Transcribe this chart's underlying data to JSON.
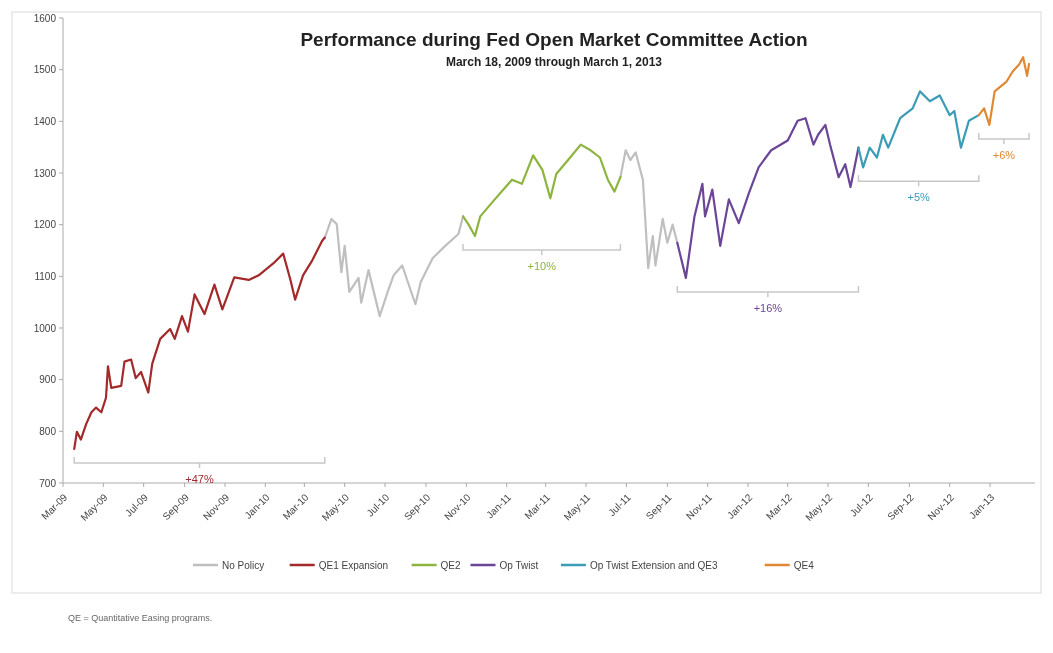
{
  "chart_data": {
    "type": "line",
    "title": "Performance during Fed Open Market Committee Action",
    "subtitle": "March 18, 2009 through March 1, 2013",
    "xlim": [
      "2009-03-01",
      "2013-03-10"
    ],
    "xticks": [
      {
        "value": "2009-03",
        "label": "Mar-09"
      },
      {
        "value": "2009-05",
        "label": "May-09"
      },
      {
        "value": "2009-07",
        "label": "Jul-09"
      },
      {
        "value": "2009-09",
        "label": "Sep-09"
      },
      {
        "value": "2009-11",
        "label": "Nov-09"
      },
      {
        "value": "2010-01",
        "label": "Jan-10"
      },
      {
        "value": "2010-03",
        "label": "Mar-10"
      },
      {
        "value": "2010-05",
        "label": "May-10"
      },
      {
        "value": "2010-07",
        "label": "Jul-10"
      },
      {
        "value": "2010-09",
        "label": "Sep-10"
      },
      {
        "value": "2010-11",
        "label": "Nov-10"
      },
      {
        "value": "2011-01",
        "label": "Jan-11"
      },
      {
        "value": "2011-03",
        "label": "Mar-11"
      },
      {
        "value": "2011-05",
        "label": "May-11"
      },
      {
        "value": "2011-07",
        "label": "Jul-11"
      },
      {
        "value": "2011-09",
        "label": "Sep-11"
      },
      {
        "value": "2011-11",
        "label": "Nov-11"
      },
      {
        "value": "2012-01",
        "label": "Jan-12"
      },
      {
        "value": "2012-03",
        "label": "Mar-12"
      },
      {
        "value": "2012-05",
        "label": "May-12"
      },
      {
        "value": "2012-07",
        "label": "Jul-12"
      },
      {
        "value": "2012-09",
        "label": "Sep-12"
      },
      {
        "value": "2012-11",
        "label": "Nov-12"
      },
      {
        "value": "2013-01",
        "label": "Jan-13"
      }
    ],
    "ylim": [
      700,
      1600
    ],
    "yticks": [
      700,
      800,
      900,
      1000,
      1100,
      1200,
      1300,
      1400,
      1500,
      1600
    ],
    "legend": "bottom",
    "marker": "none",
    "line_style": "solid",
    "series": [
      {
        "name": "No Policy",
        "color": "#bfbfbf",
        "x": [
          "2010-04-01",
          "2010-04-11",
          "2010-04-19",
          "2010-04-26",
          "2010-05-01",
          "2010-05-08",
          "2010-05-22",
          "2010-05-26",
          "2010-06-06",
          "2010-06-23",
          "2010-07-05",
          "2010-07-14",
          "2010-07-27",
          "2010-08-16",
          "2010-08-24",
          "2010-09-11",
          "2010-09-26",
          "2010-10-20",
          "2010-10-27",
          "2011-01-01",
          "2011-06-22",
          "2011-06-30",
          "2011-07-07",
          "2011-07-15",
          "2011-07-26",
          "2011-08-03",
          "2011-08-10",
          "2011-08-14",
          "2011-08-25",
          "2011-09-01",
          "2011-09-09",
          "2011-09-16"
        ],
        "values": [
          1175,
          1211,
          1201,
          1108,
          1159,
          1070,
          1097,
          1049,
          1112,
          1023,
          1070,
          1102,
          1121,
          1046,
          1089,
          1135,
          1154,
          1182,
          1216,
          null,
          1292,
          1344,
          1325,
          1340,
          1287,
          1116,
          1178,
          1121,
          1211,
          1165,
          1200,
          1165
        ]
      },
      {
        "name": "QE1 Expansion",
        "color": "#a3292b",
        "x": [
          "2009-03-18",
          "2009-03-22",
          "2009-03-28",
          "2009-04-05",
          "2009-04-13",
          "2009-04-20",
          "2009-04-28",
          "2009-05-05",
          "2009-05-08",
          "2009-05-13",
          "2009-05-28",
          "2009-06-02",
          "2009-06-12",
          "2009-06-19",
          "2009-06-27",
          "2009-07-08",
          "2009-07-14",
          "2009-07-26",
          "2009-08-10",
          "2009-08-17",
          "2009-08-28",
          "2009-09-06",
          "2009-09-16",
          "2009-10-01",
          "2009-10-16",
          "2009-10-28",
          "2009-11-15",
          "2009-12-07",
          "2009-12-22",
          "2010-01-13",
          "2010-01-28",
          "2010-02-08",
          "2010-02-15",
          "2010-02-27",
          "2010-03-13",
          "2010-03-28",
          "2010-04-01"
        ],
        "values": [
          766,
          799,
          784,
          814,
          837,
          846,
          837,
          865,
          926,
          884,
          888,
          935,
          939,
          903,
          915,
          875,
          931,
          979,
          998,
          979,
          1023,
          993,
          1065,
          1027,
          1084,
          1036,
          1098,
          1093,
          1102,
          1125,
          1144,
          1093,
          1055,
          1102,
          1131,
          1169,
          1175
        ]
      },
      {
        "name": "QE2",
        "color": "#8db43e",
        "x": [
          "2010-10-27",
          "2010-11-04",
          "2010-11-14",
          "2010-11-22",
          "2010-12-14",
          "2011-01-09",
          "2011-01-24",
          "2011-02-10",
          "2011-02-24",
          "2011-03-08",
          "2011-03-17",
          "2011-04-07",
          "2011-04-23",
          "2011-05-08",
          "2011-05-22",
          "2011-06-03",
          "2011-06-13",
          "2011-06-22"
        ],
        "values": [
          1216,
          1201,
          1178,
          1216,
          1249,
          1287,
          1279,
          1334,
          1306,
          1251,
          1298,
          1330,
          1355,
          1344,
          1330,
          1287,
          1264,
          1292
        ]
      },
      {
        "name": "Op Twist",
        "color": "#6b4598",
        "x": [
          "2011-09-16",
          "2011-09-29",
          "2011-10-12",
          "2011-10-24",
          "2011-10-28",
          "2011-11-08",
          "2011-11-20",
          "2011-12-03",
          "2011-12-18",
          "2012-01-02",
          "2012-01-17",
          "2012-02-05",
          "2012-03-01",
          "2012-03-16",
          "2012-03-28",
          "2012-04-09",
          "2012-04-16",
          "2012-04-27",
          "2012-05-04",
          "2012-05-17",
          "2012-05-27",
          "2012-06-04",
          "2012-06-16"
        ],
        "values": [
          1165,
          1097,
          1216,
          1279,
          1216,
          1268,
          1159,
          1249,
          1203,
          1260,
          1311,
          1344,
          1363,
          1401,
          1406,
          1355,
          1374,
          1393,
          1355,
          1292,
          1317,
          1273,
          1349
        ]
      },
      {
        "name": "Op Twist Extension and QE3",
        "color": "#3b9cb6",
        "x": [
          "2012-06-16",
          "2012-06-23",
          "2012-07-03",
          "2012-07-14",
          "2012-07-23",
          "2012-07-31",
          "2012-08-18",
          "2012-09-06",
          "2012-09-17",
          "2012-10-02",
          "2012-10-17",
          "2012-11-01",
          "2012-11-08",
          "2012-11-18",
          "2012-11-30",
          "2012-12-15"
        ],
        "values": [
          1349,
          1311,
          1349,
          1330,
          1374,
          1349,
          1406,
          1425,
          1458,
          1439,
          1450,
          1412,
          1420,
          1349,
          1401,
          1412
        ]
      },
      {
        "name": "QE4",
        "color": "#e08934",
        "x": [
          "2012-12-15",
          "2012-12-23",
          "2012-12-31",
          "2013-01-08",
          "2013-01-26",
          "2013-02-04",
          "2013-02-14",
          "2013-02-20",
          "2013-02-26",
          "2013-03-01"
        ],
        "values": [
          1412,
          1425,
          1393,
          1458,
          1477,
          1496,
          1510,
          1524,
          1488,
          1511
        ]
      }
    ],
    "annotations": [
      "+47%",
      "+10%",
      "+16%",
      "+5%",
      "+6%",
      "QE = Quantitative Easing programs."
    ]
  }
}
